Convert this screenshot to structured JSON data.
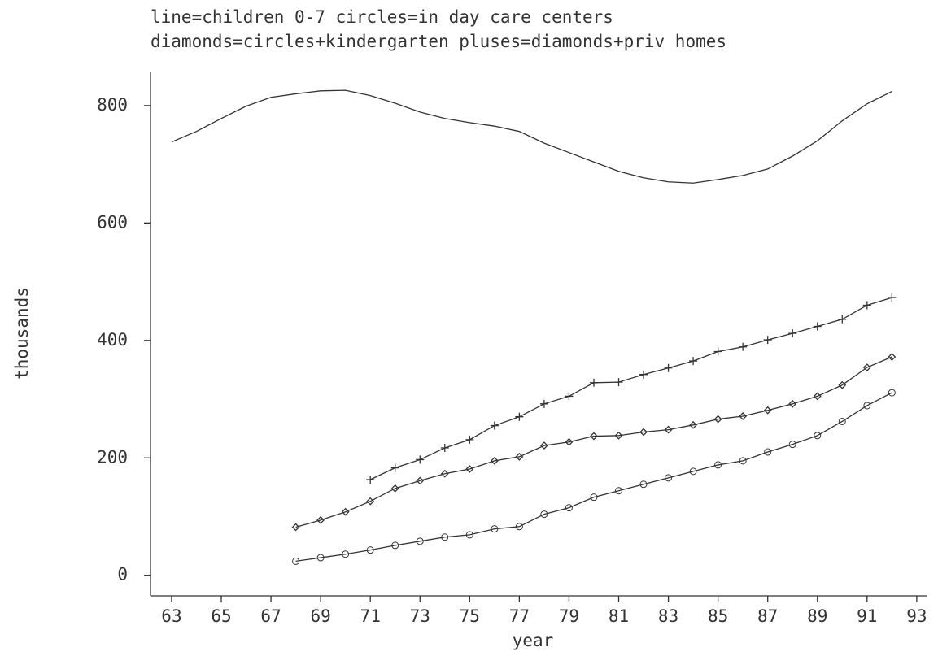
{
  "chart_data": {
    "type": "line",
    "title": [
      "line=children 0-7 circles=in day care centers",
      "diamonds=circles+kindergarten pluses=diamonds+priv homes"
    ],
    "x_label": "year",
    "y_label": "thousands",
    "x": [
      63,
      64,
      65,
      66,
      67,
      68,
      69,
      70,
      71,
      72,
      73,
      74,
      75,
      76,
      77,
      78,
      79,
      80,
      81,
      82,
      83,
      84,
      85,
      86,
      87,
      88,
      89,
      90,
      91,
      92
    ],
    "series": [
      {
        "marker": "none",
        "color": "#333333",
        "values": [
          738,
          756,
          778,
          799,
          814,
          820,
          825,
          826,
          817,
          804,
          789,
          778,
          771,
          765,
          756,
          736,
          720,
          704,
          688,
          677,
          670,
          668,
          674,
          681,
          692,
          714,
          740,
          774,
          803,
          824
        ]
      },
      {
        "marker": "plus",
        "color": "#333333",
        "values": [
          null,
          null,
          null,
          null,
          null,
          null,
          null,
          null,
          163,
          183,
          197,
          217,
          231,
          255,
          270,
          292,
          305,
          328,
          329,
          342,
          353,
          365,
          381,
          389,
          401,
          412,
          424,
          436,
          460,
          473
        ]
      },
      {
        "marker": "diamond",
        "color": "#333333",
        "values": [
          null,
          null,
          null,
          null,
          null,
          82,
          94,
          108,
          126,
          148,
          161,
          173,
          181,
          195,
          202,
          221,
          227,
          237,
          238,
          244,
          248,
          256,
          266,
          271,
          281,
          292,
          305,
          324,
          354,
          372
        ]
      },
      {
        "marker": "circle",
        "color": "#333333",
        "values": [
          null,
          null,
          null,
          null,
          null,
          24,
          30,
          36,
          43,
          51,
          58,
          65,
          69,
          79,
          83,
          104,
          115,
          133,
          144,
          155,
          166,
          177,
          188,
          195,
          210,
          223,
          238,
          262,
          289,
          311
        ]
      }
    ],
    "xlim": [
      62.15,
      93.43
    ],
    "ylim": [
      -35,
      858
    ],
    "xticks": [
      63,
      65,
      67,
      69,
      71,
      73,
      75,
      77,
      79,
      81,
      83,
      85,
      87,
      89,
      91,
      93
    ],
    "yticks": [
      0,
      200,
      400,
      600,
      800
    ]
  }
}
